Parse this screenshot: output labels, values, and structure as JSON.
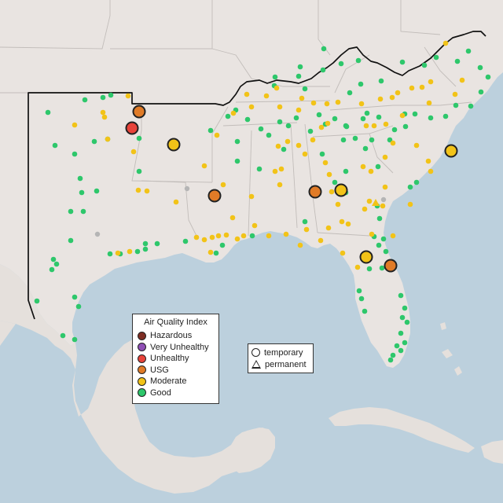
{
  "legend": {
    "title": "Air Quality Index",
    "categories": [
      {
        "label": "Hazardous",
        "color": "#7e2e24"
      },
      {
        "label": "Very Unhealthy",
        "color": "#8f4fb5"
      },
      {
        "label": "Unhealthy",
        "color": "#e8433a"
      },
      {
        "label": "USG",
        "color": "#e07b27"
      },
      {
        "label": "Moderate",
        "color": "#f2c318"
      },
      {
        "label": "Good",
        "color": "#2ec76b"
      }
    ]
  },
  "monitor_types": {
    "temporary": "temporary",
    "permanent": "permanent"
  },
  "colors": {
    "water": "#bcd0dd",
    "land": "#e9e4e1",
    "region_border": "#111111",
    "state_border": "#c2bdba",
    "inactive_monitor": "#b5b5b5"
  }
}
